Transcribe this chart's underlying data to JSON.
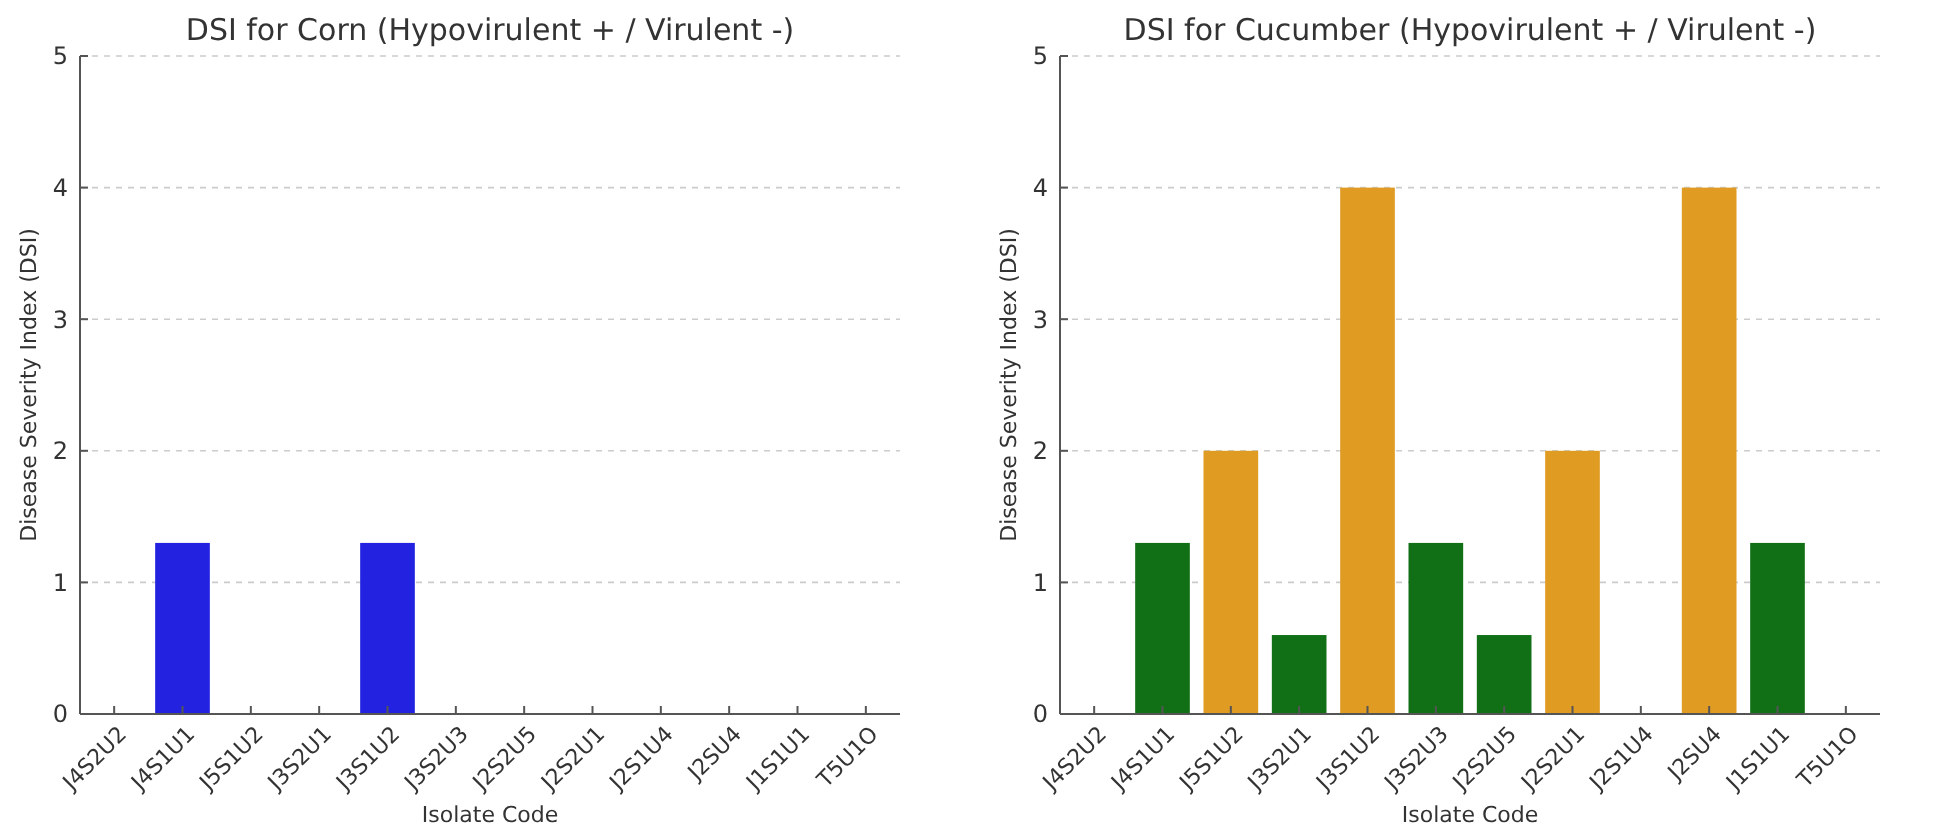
{
  "chart_data": [
    {
      "type": "bar",
      "title": "DSI for Corn (Hypovirulent + / Virulent -)",
      "xlabel": "Isolate Code",
      "ylabel": "Disease Severity Index (DSI)",
      "categories": [
        "J4S2U2",
        "J4S1U1",
        "J5S1U2",
        "J3S2U1",
        "J3S1U2",
        "J3S2U3",
        "J2S2U5",
        "J2S2U1",
        "J2S1U4",
        "J2SU4",
        "J1S1U1",
        "T5U1O"
      ],
      "values": [
        0,
        1.3,
        0,
        0,
        1.3,
        0,
        0,
        0,
        0,
        0,
        0,
        0
      ],
      "colors": [
        "#2222e0",
        "#2222e0",
        "#2222e0",
        "#2222e0",
        "#2222e0",
        "#2222e0",
        "#2222e0",
        "#2222e0",
        "#2222e0",
        "#2222e0",
        "#2222e0",
        "#2222e0"
      ],
      "ylim": [
        0,
        5
      ],
      "yticks": [
        0,
        1,
        2,
        3,
        4,
        5
      ],
      "grid": "y"
    },
    {
      "type": "bar",
      "title": "DSI for Cucumber (Hypovirulent + / Virulent -)",
      "xlabel": "Isolate Code",
      "ylabel": "Disease Severity Index (DSI)",
      "categories": [
        "J4S2U2",
        "J4S1U1",
        "J5S1U2",
        "J3S2U1",
        "J3S1U2",
        "J3S2U3",
        "J2S2U5",
        "J2S2U1",
        "J2S1U4",
        "J2SU4",
        "J1S1U1",
        "T5U1O"
      ],
      "values": [
        0,
        1.3,
        2,
        0.6,
        4,
        1.3,
        0.6,
        2,
        0,
        4,
        1.3,
        0
      ],
      "colors": [
        "#117016",
        "#117016",
        "#e09b22",
        "#117016",
        "#e09b22",
        "#117016",
        "#117016",
        "#e09b22",
        "#117016",
        "#e09b22",
        "#117016",
        "#117016"
      ],
      "ylim": [
        0,
        5
      ],
      "yticks": [
        0,
        1,
        2,
        3,
        4,
        5
      ],
      "grid": "y"
    }
  ]
}
